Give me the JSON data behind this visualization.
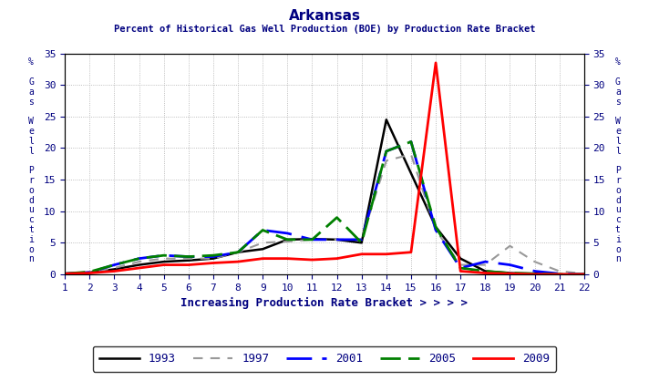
{
  "title": "Arkansas",
  "subtitle": "Percent of Historical Gas Well Production (BOE) by Production Rate Bracket",
  "xlabel": "Increasing Production Rate Bracket > > > >",
  "ylabel_chars": [
    "%",
    "",
    "G",
    "a",
    "s",
    "",
    "W",
    "e",
    "l",
    "l",
    "",
    "P",
    "r",
    "o",
    "d",
    "u",
    "c",
    "t",
    "i",
    "o",
    "n"
  ],
  "x": [
    1,
    2,
    3,
    4,
    5,
    6,
    7,
    8,
    9,
    10,
    11,
    12,
    13,
    14,
    15,
    16,
    17,
    18,
    19,
    20,
    21,
    22
  ],
  "series": [
    {
      "label": "1993",
      "color": "#000000",
      "linestyle": "solid",
      "linewidth": 1.8,
      "dashes": null,
      "values": [
        0.1,
        0.3,
        0.8,
        1.5,
        2.0,
        2.2,
        2.5,
        3.5,
        4.0,
        5.5,
        5.6,
        5.5,
        5.0,
        24.5,
        16.0,
        7.5,
        2.5,
        0.5,
        0.2,
        0.1,
        0.0,
        0.0
      ]
    },
    {
      "label": "1997",
      "color": "#999999",
      "linestyle": "dashed",
      "linewidth": 1.5,
      "dashes": [
        5,
        4
      ],
      "values": [
        0.1,
        0.3,
        1.0,
        2.0,
        2.5,
        2.5,
        2.5,
        3.5,
        5.0,
        5.2,
        5.5,
        5.5,
        5.5,
        18.0,
        19.0,
        7.0,
        1.5,
        1.5,
        4.5,
        2.0,
        0.5,
        0.1
      ]
    },
    {
      "label": "2001",
      "color": "#0000ff",
      "linestyle": "dashed",
      "linewidth": 2.0,
      "dashes": [
        10,
        4
      ],
      "values": [
        0.1,
        0.3,
        1.5,
        2.5,
        3.0,
        2.8,
        2.8,
        3.5,
        7.0,
        6.5,
        5.5,
        5.5,
        5.5,
        19.5,
        21.0,
        7.0,
        1.0,
        2.0,
        1.5,
        0.5,
        0.1,
        0.0
      ]
    },
    {
      "label": "2005",
      "color": "#008000",
      "linestyle": "dashed",
      "linewidth": 2.0,
      "dashes": [
        8,
        3
      ],
      "values": [
        0.1,
        0.4,
        1.5,
        2.5,
        3.0,
        2.8,
        3.0,
        3.5,
        7.0,
        5.5,
        5.5,
        9.0,
        5.0,
        19.5,
        21.0,
        7.5,
        1.0,
        0.5,
        0.2,
        0.1,
        0.0,
        0.0
      ]
    },
    {
      "label": "2009",
      "color": "#ff0000",
      "linestyle": "solid",
      "linewidth": 2.0,
      "dashes": null,
      "values": [
        0.1,
        0.2,
        0.5,
        1.0,
        1.5,
        1.5,
        1.8,
        2.0,
        2.5,
        2.5,
        2.3,
        2.5,
        3.2,
        3.2,
        3.5,
        33.5,
        0.5,
        0.2,
        0.1,
        0.0,
        0.0,
        0.0
      ]
    }
  ],
  "xlim": [
    1,
    22
  ],
  "ylim": [
    0,
    35
  ],
  "yticks": [
    0,
    5,
    10,
    15,
    20,
    25,
    30,
    35
  ],
  "xticks": [
    1,
    2,
    3,
    4,
    5,
    6,
    7,
    8,
    9,
    10,
    11,
    12,
    13,
    14,
    15,
    16,
    17,
    18,
    19,
    20,
    21,
    22
  ],
  "background_color": "#ffffff",
  "grid_color": "#aaaaaa",
  "title_color": "#000080",
  "subtitle_color": "#000080",
  "xlabel_color": "#000080",
  "ylabel_color": "#000080",
  "tick_color": "#000080",
  "figsize": [
    7.12,
    4.18
  ],
  "dpi": 100
}
